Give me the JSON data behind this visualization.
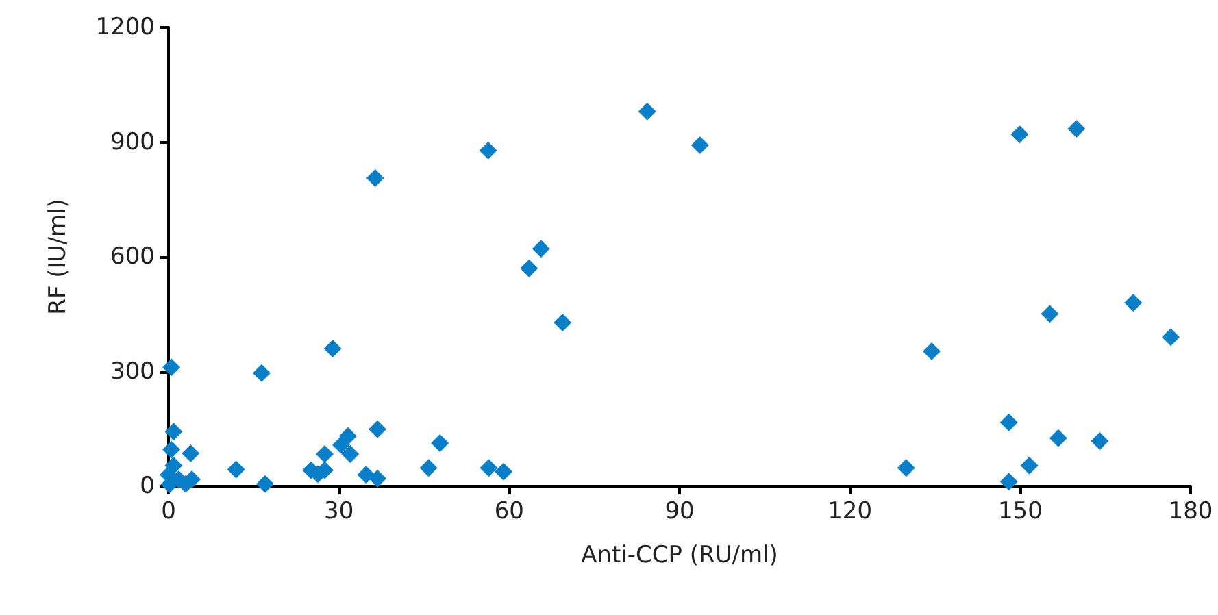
{
  "chart_data": {
    "type": "scatter",
    "xlabel": "Anti-CCP (RU/ml)",
    "ylabel": "RF (IU/ml)",
    "marker": "diamond",
    "xlim": [
      0,
      180
    ],
    "xticks": [
      0,
      30,
      60,
      90,
      120,
      150,
      180
    ],
    "ylim": [
      0,
      1200
    ],
    "yticks": [
      0,
      300,
      600,
      900,
      1200
    ],
    "series": [
      {
        "color": "#0a7fc9",
        "x": [
          0.5,
          16.4,
          28.9,
          36.4,
          56.3,
          84.3,
          93.6,
          63.5,
          65.6,
          69.4,
          134.4,
          149.9,
          159.9,
          155.2,
          169.9,
          176.5,
          148.0,
          156.7,
          164.0,
          129.9,
          151.6,
          148.0,
          0.9,
          0.5,
          3.9,
          0.9,
          0,
          1.8,
          4.1,
          3.0,
          0.2,
          11.9,
          17.0,
          25.1,
          26.3,
          27.5,
          27.5,
          30.4,
          31.6,
          32.0,
          36.8,
          34.8,
          36.8,
          45.8,
          47.8,
          56.4,
          59.0
        ],
        "values": [
          311,
          296,
          360,
          806,
          878,
          980,
          892,
          570,
          621,
          428,
          353,
          920,
          935,
          451,
          480,
          390,
          167,
          126,
          118,
          48,
          54,
          12,
          143,
          96,
          86,
          54,
          30,
          18,
          18,
          6,
          5,
          44,
          6,
          42,
          32,
          42,
          84,
          108,
          131,
          84,
          149,
          30,
          20,
          48,
          113,
          48,
          38
        ]
      }
    ]
  }
}
